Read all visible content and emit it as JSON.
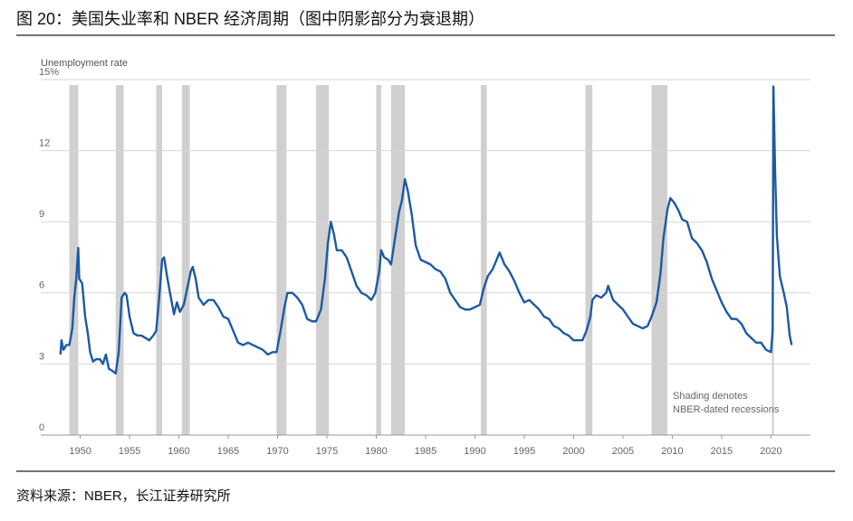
{
  "chart_data": {
    "type": "line",
    "title": "图 20：美国失业率和 NBER 经济周期（图中阴影部分为衰退期）",
    "source": "资料来源：NBER，长江证券研究所",
    "y_label": "Unemployment rate",
    "annotation": [
      "Shading denotes",
      "NBER-dated recessions"
    ],
    "color": "#1c5aa3",
    "recession_color": "#d0d0d0",
    "grid": true,
    "xlim": [
      1946,
      2024
    ],
    "xticks": [
      1950,
      1955,
      1960,
      1965,
      1970,
      1975,
      1980,
      1985,
      1990,
      1995,
      2000,
      2005,
      2010,
      2015,
      2020
    ],
    "ylim": [
      0,
      15
    ],
    "yticks": [
      0,
      3,
      6,
      9,
      12,
      {
        "value": 15,
        "label": "15%"
      }
    ],
    "recessions": [
      [
        1948.9,
        1949.8
      ],
      [
        1953.6,
        1954.4
      ],
      [
        1957.7,
        1958.3
      ],
      [
        1960.3,
        1961.1
      ],
      [
        1969.9,
        1970.9
      ],
      [
        1973.9,
        1975.2
      ],
      [
        1980.0,
        1980.5
      ],
      [
        1981.5,
        1982.9
      ],
      [
        1990.6,
        1991.2
      ],
      [
        2001.2,
        2001.9
      ],
      [
        2007.9,
        2009.5
      ],
      [
        2020.1,
        2020.3
      ]
    ],
    "x": [
      1948.0,
      1948.1,
      1948.3,
      1948.6,
      1948.9,
      1949.2,
      1949.4,
      1949.6,
      1949.8,
      1949.9,
      1950.2,
      1950.5,
      1950.8,
      1951.0,
      1951.3,
      1951.6,
      1952.0,
      1952.3,
      1952.6,
      1952.9,
      1953.3,
      1953.6,
      1953.9,
      1954.2,
      1954.5,
      1954.7,
      1955.0,
      1955.4,
      1955.8,
      1956.2,
      1956.6,
      1957.0,
      1957.4,
      1957.7,
      1958.0,
      1958.3,
      1958.5,
      1958.8,
      1959.1,
      1959.5,
      1959.8,
      1960.1,
      1960.5,
      1960.9,
      1961.2,
      1961.4,
      1961.7,
      1962.0,
      1962.5,
      1963.0,
      1963.5,
      1964.0,
      1964.5,
      1965.0,
      1965.5,
      1966.0,
      1966.5,
      1967.0,
      1967.5,
      1968.0,
      1968.5,
      1969.0,
      1969.5,
      1969.9,
      1970.3,
      1970.7,
      1971.0,
      1971.5,
      1972.0,
      1972.5,
      1973.0,
      1973.5,
      1973.9,
      1974.4,
      1974.8,
      1975.1,
      1975.4,
      1975.7,
      1976.0,
      1976.5,
      1977.0,
      1977.5,
      1978.0,
      1978.5,
      1979.0,
      1979.5,
      1979.9,
      1980.3,
      1980.5,
      1980.8,
      1981.2,
      1981.5,
      1981.9,
      1982.3,
      1982.6,
      1982.9,
      1983.2,
      1983.6,
      1984.0,
      1984.5,
      1985.0,
      1985.5,
      1986.0,
      1986.5,
      1987.0,
      1987.5,
      1988.0,
      1988.5,
      1989.0,
      1989.5,
      1990.0,
      1990.5,
      1990.9,
      1991.3,
      1991.8,
      1992.3,
      1992.5,
      1993.0,
      1993.5,
      1994.0,
      1994.5,
      1995.0,
      1995.5,
      1996.0,
      1996.5,
      1997.0,
      1997.5,
      1998.0,
      1998.5,
      1999.0,
      1999.5,
      2000.0,
      2000.5,
      2000.9,
      2001.3,
      2001.7,
      2001.9,
      2002.3,
      2002.8,
      2003.3,
      2003.5,
      2004.0,
      2004.5,
      2005.0,
      2005.5,
      2006.0,
      2006.5,
      2007.0,
      2007.5,
      2007.9,
      2008.4,
      2008.8,
      2009.1,
      2009.5,
      2009.8,
      2010.2,
      2010.6,
      2011.0,
      2011.5,
      2012.0,
      2012.5,
      2013.0,
      2013.5,
      2014.0,
      2014.5,
      2015.0,
      2015.5,
      2016.0,
      2016.5,
      2017.0,
      2017.5,
      2018.0,
      2018.5,
      2019.0,
      2019.5,
      2020.0,
      2020.17,
      2020.25,
      2020.42,
      2020.6,
      2020.9,
      2021.3,
      2021.6,
      2021.9,
      2022.1
    ],
    "values": [
      3.4,
      4.0,
      3.6,
      3.8,
      3.8,
      4.5,
      5.8,
      6.6,
      7.9,
      6.6,
      6.4,
      5.0,
      4.2,
      3.5,
      3.1,
      3.2,
      3.2,
      3.0,
      3.4,
      2.8,
      2.7,
      2.6,
      3.5,
      5.8,
      6.0,
      5.9,
      5.0,
      4.3,
      4.2,
      4.2,
      4.1,
      4.0,
      4.2,
      4.4,
      5.8,
      7.4,
      7.5,
      6.7,
      6.0,
      5.1,
      5.6,
      5.2,
      5.5,
      6.3,
      6.9,
      7.1,
      6.6,
      5.8,
      5.5,
      5.7,
      5.7,
      5.4,
      5.0,
      4.9,
      4.4,
      3.9,
      3.8,
      3.9,
      3.8,
      3.7,
      3.6,
      3.4,
      3.5,
      3.5,
      4.4,
      5.4,
      6.0,
      6.0,
      5.8,
      5.5,
      4.9,
      4.8,
      4.8,
      5.3,
      6.6,
      8.1,
      9.0,
      8.5,
      7.8,
      7.8,
      7.5,
      6.9,
      6.3,
      6.0,
      5.9,
      5.7,
      6.0,
      6.9,
      7.8,
      7.5,
      7.4,
      7.2,
      8.3,
      9.4,
      9.9,
      10.8,
      10.3,
      9.3,
      8.0,
      7.4,
      7.3,
      7.2,
      7.0,
      6.9,
      6.6,
      6.0,
      5.7,
      5.4,
      5.3,
      5.3,
      5.4,
      5.5,
      6.2,
      6.7,
      7.0,
      7.5,
      7.7,
      7.2,
      6.9,
      6.5,
      6.0,
      5.6,
      5.7,
      5.5,
      5.3,
      5.0,
      4.9,
      4.6,
      4.5,
      4.3,
      4.2,
      4.0,
      4.0,
      4.0,
      4.4,
      5.0,
      5.7,
      5.9,
      5.8,
      6.0,
      6.3,
      5.7,
      5.5,
      5.3,
      5.0,
      4.7,
      4.6,
      4.5,
      4.6,
      5.0,
      5.6,
      6.8,
      8.3,
      9.5,
      10.0,
      9.8,
      9.5,
      9.1,
      9.0,
      8.3,
      8.1,
      7.8,
      7.3,
      6.6,
      6.1,
      5.6,
      5.2,
      4.9,
      4.9,
      4.7,
      4.3,
      4.1,
      3.9,
      3.9,
      3.6,
      3.5,
      4.4,
      14.7,
      11.1,
      8.4,
      6.7,
      6.0,
      5.4,
      4.2,
      3.8
    ]
  }
}
